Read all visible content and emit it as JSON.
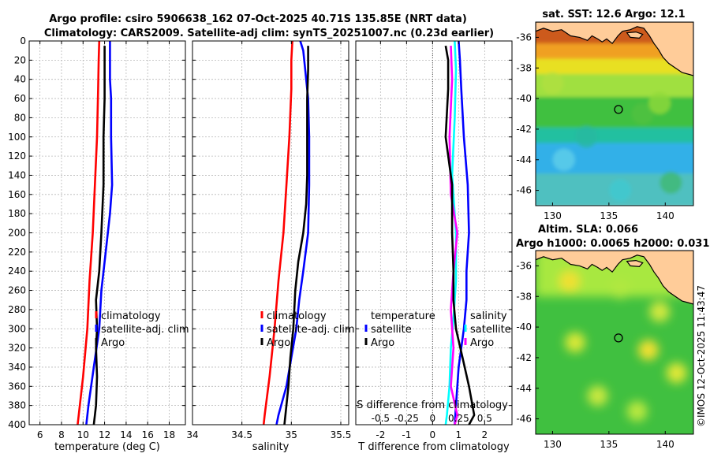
{
  "header": {
    "title_line1": "Argo profile: csiro 5906638_162 07-Oct-2025 40.71S 135.85E (NRT data)",
    "title_line2": "Climatology: CARS2009. Satellite-adj clim: synTS_20251007.nc (0.23d earlier)",
    "sst_title": "sat. SST: 12.6 Argo: 12.1",
    "sla_title1": "Altim. SLA: 0.066",
    "sla_title2": "Argo h1000: 0.0065 h2000: 0.031",
    "credit": "©IMOS 12-Oct-2025 11:43:47"
  },
  "colors": {
    "climatology": "#ff0000",
    "satellite": "#0000ff",
    "argo": "#000000",
    "salinity_diff": "#ff00ff",
    "temperature_diff": "#00ffff",
    "land": "#ffcc99",
    "coast": "#000000"
  },
  "chart_data": [
    {
      "type": "line",
      "id": "temperature",
      "xlabel": "temperature (deg C)",
      "ylabel": "",
      "xlim": [
        5,
        19.5
      ],
      "ylim": [
        400,
        0
      ],
      "xticks": [
        6,
        8,
        10,
        12,
        14,
        16,
        18
      ],
      "yticks": [
        0,
        20,
        40,
        60,
        80,
        100,
        120,
        140,
        160,
        180,
        200,
        220,
        240,
        260,
        280,
        300,
        320,
        340,
        360,
        380,
        400
      ],
      "legend": [
        "climatology",
        "satellite-adj. clim",
        "Argo"
      ],
      "series": [
        {
          "name": "climatology",
          "color": "#ff0000",
          "points": [
            [
              11.5,
              0
            ],
            [
              11.45,
              20
            ],
            [
              11.4,
              50
            ],
            [
              11.3,
              100
            ],
            [
              11.1,
              150
            ],
            [
              10.9,
              200
            ],
            [
              10.6,
              250
            ],
            [
              10.4,
              300
            ],
            [
              10.0,
              350
            ],
            [
              9.6,
              390
            ],
            [
              9.5,
              400
            ]
          ]
        },
        {
          "name": "satellite-adj. clim",
          "color": "#0000ff",
          "points": [
            [
              12.5,
              0
            ],
            [
              12.5,
              20
            ],
            [
              12.5,
              40
            ],
            [
              12.6,
              60
            ],
            [
              12.6,
              100
            ],
            [
              12.7,
              150
            ],
            [
              12.5,
              180
            ],
            [
              12.1,
              220
            ],
            [
              11.7,
              260
            ],
            [
              11.5,
              300
            ],
            [
              11.0,
              340
            ],
            [
              10.5,
              380
            ],
            [
              10.3,
              400
            ]
          ]
        },
        {
          "name": "Argo",
          "color": "#000000",
          "points": [
            [
              12.0,
              5
            ],
            [
              12.0,
              20
            ],
            [
              12.0,
              60
            ],
            [
              11.9,
              100
            ],
            [
              11.9,
              150
            ],
            [
              11.7,
              200
            ],
            [
              11.5,
              240
            ],
            [
              11.2,
              270
            ],
            [
              11.3,
              300
            ],
            [
              11.2,
              320
            ],
            [
              11.3,
              350
            ],
            [
              11.2,
              380
            ],
            [
              11.0,
              400
            ]
          ]
        }
      ]
    },
    {
      "type": "line",
      "id": "salinity",
      "xlabel": "salinity",
      "ylabel": "",
      "xlim": [
        34,
        35.58
      ],
      "ylim": [
        400,
        0
      ],
      "xticks": [
        34,
        34.5,
        35,
        35.5
      ],
      "legend": [
        "climatology",
        "satellite-adj. clim",
        "Argo"
      ],
      "series": [
        {
          "name": "climatology",
          "color": "#ff0000",
          "points": [
            [
              35.01,
              0
            ],
            [
              35.0,
              20
            ],
            [
              35.0,
              50
            ],
            [
              34.98,
              100
            ],
            [
              34.95,
              150
            ],
            [
              34.92,
              200
            ],
            [
              34.87,
              250
            ],
            [
              34.83,
              300
            ],
            [
              34.78,
              350
            ],
            [
              34.73,
              390
            ],
            [
              34.72,
              400
            ]
          ]
        },
        {
          "name": "satellite-adj. clim",
          "color": "#0000ff",
          "points": [
            [
              35.09,
              0
            ],
            [
              35.12,
              10
            ],
            [
              35.14,
              30
            ],
            [
              35.17,
              60
            ],
            [
              35.18,
              100
            ],
            [
              35.18,
              150
            ],
            [
              35.17,
              200
            ],
            [
              35.12,
              240
            ],
            [
              35.08,
              270
            ],
            [
              35.05,
              300
            ],
            [
              35.0,
              330
            ],
            [
              34.95,
              360
            ],
            [
              34.87,
              390
            ],
            [
              34.85,
              400
            ]
          ]
        },
        {
          "name": "Argo",
          "color": "#000000",
          "points": [
            [
              35.17,
              5
            ],
            [
              35.17,
              30
            ],
            [
              35.16,
              60
            ],
            [
              35.16,
              100
            ],
            [
              35.16,
              140
            ],
            [
              35.15,
              170
            ],
            [
              35.12,
              200
            ],
            [
              35.07,
              230
            ],
            [
              35.04,
              260
            ],
            [
              35.02,
              300
            ],
            [
              34.99,
              330
            ],
            [
              34.97,
              360
            ],
            [
              34.94,
              390
            ],
            [
              34.93,
              400
            ]
          ]
        }
      ]
    },
    {
      "type": "line",
      "id": "difference",
      "xlabel": "T difference from climatology",
      "xlabel_top": "S difference from climatology",
      "xlim": [
        -2.95,
        3.05
      ],
      "ylim": [
        400,
        0
      ],
      "xticks": [
        -2,
        -1,
        0,
        1,
        2
      ],
      "xtick_labels": [
        "-2",
        "-1",
        "0",
        "1",
        "2"
      ],
      "xticks_s": [
        -2,
        -1,
        0,
        1,
        2
      ],
      "xtick_labels_s": [
        "-0.5",
        "-0.25",
        "0",
        "0.25",
        "0.5"
      ],
      "legend_left": [
        "temperature",
        "satellite",
        "Argo"
      ],
      "legend_right": [
        "salinity",
        "satellite",
        "Argo"
      ],
      "series": [
        {
          "name": "satellite temperature",
          "color": "#0000ff",
          "points": [
            [
              1.0,
              0
            ],
            [
              1.05,
              20
            ],
            [
              1.1,
              50
            ],
            [
              1.2,
              100
            ],
            [
              1.35,
              150
            ],
            [
              1.4,
              200
            ],
            [
              1.3,
              240
            ],
            [
              1.3,
              270
            ],
            [
              1.2,
              300
            ],
            [
              1.0,
              340
            ],
            [
              0.9,
              380
            ],
            [
              0.85,
              400
            ]
          ]
        },
        {
          "name": "satellite salinity",
          "color": "#00ffff",
          "points": [
            [
              0.85,
              0
            ],
            [
              0.9,
              30
            ],
            [
              0.85,
              80
            ],
            [
              0.75,
              140
            ],
            [
              0.9,
              200
            ],
            [
              0.9,
              250
            ],
            [
              0.8,
              290
            ],
            [
              0.7,
              320
            ],
            [
              0.65,
              360
            ],
            [
              0.55,
              390
            ],
            [
              0.5,
              400
            ]
          ]
        },
        {
          "name": "Argo salinity",
          "color": "#ff00ff",
          "points": [
            [
              0.7,
              5
            ],
            [
              0.75,
              40
            ],
            [
              0.65,
              100
            ],
            [
              0.7,
              160
            ],
            [
              0.95,
              200
            ],
            [
              0.8,
              240
            ],
            [
              0.7,
              280
            ],
            [
              0.8,
              320
            ],
            [
              0.7,
              360
            ],
            [
              0.95,
              390
            ],
            [
              0.85,
              400
            ]
          ]
        },
        {
          "name": "Argo temperature",
          "color": "#000000",
          "points": [
            [
              0.5,
              5
            ],
            [
              0.6,
              20
            ],
            [
              0.6,
              50
            ],
            [
              0.5,
              100
            ],
            [
              0.75,
              150
            ],
            [
              0.75,
              200
            ],
            [
              0.8,
              240
            ],
            [
              0.8,
              270
            ],
            [
              0.9,
              300
            ],
            [
              1.15,
              330
            ],
            [
              1.4,
              360
            ],
            [
              1.6,
              390
            ],
            [
              1.4,
              400
            ]
          ]
        }
      ]
    },
    {
      "type": "heatmap",
      "id": "sst_map",
      "title": "sat. SST: 12.6 Argo: 12.1",
      "xlim": [
        128.5,
        142.5
      ],
      "ylim": [
        -47,
        -35
      ],
      "xticks": [
        130,
        135,
        140
      ],
      "yticks": [
        -36,
        -38,
        -40,
        -42,
        -44,
        -46
      ],
      "argo_position": [
        135.85,
        -40.71
      ],
      "bands": [
        {
          "lat_top": -35,
          "lat_bottom": -36.5,
          "color": "#cc5a1e"
        },
        {
          "lat_top": -36.5,
          "lat_bottom": -37.5,
          "color": "#f0a020"
        },
        {
          "lat_top": -37.5,
          "lat_bottom": -38.5,
          "color": "#e8e020"
        },
        {
          "lat_top": -38.5,
          "lat_bottom": -40.0,
          "color": "#a0e040"
        },
        {
          "lat_top": -40.0,
          "lat_bottom": -42.0,
          "color": "#40c040"
        },
        {
          "lat_top": -42.0,
          "lat_bottom": -43.0,
          "color": "#20c0a0"
        },
        {
          "lat_top": -43.0,
          "lat_bottom": -45.0,
          "color": "#30b0e8"
        },
        {
          "lat_top": -45.0,
          "lat_bottom": -47.0,
          "color": "#50c0c0"
        }
      ]
    },
    {
      "type": "heatmap",
      "id": "sla_map",
      "title": "Altim. SLA: 0.066",
      "xlim": [
        128.5,
        142.5
      ],
      "ylim": [
        -47,
        -35
      ],
      "xticks": [
        130,
        135,
        140
      ],
      "yticks": [
        -36,
        -38,
        -40,
        -42,
        -44,
        -46
      ],
      "argo_position": [
        135.85,
        -40.71
      ],
      "base_color": "#40c040",
      "shelf_color": "#a8e840",
      "eddies": [
        {
          "lon": 131.5,
          "lat": -37.0,
          "color": "#f0e030"
        },
        {
          "lon": 136.0,
          "lat": -37.5,
          "color": "#b0e840"
        },
        {
          "lon": 139.5,
          "lat": -39.0,
          "color": "#d0e840"
        },
        {
          "lon": 132.0,
          "lat": -41.0,
          "color": "#d8e838"
        },
        {
          "lon": 138.5,
          "lat": -41.5,
          "color": "#f0e030"
        },
        {
          "lon": 134.0,
          "lat": -44.5,
          "color": "#c8e840"
        },
        {
          "lon": 141.0,
          "lat": -43.0,
          "color": "#e0e838"
        },
        {
          "lon": 137.5,
          "lat": -45.5,
          "color": "#b8e840"
        }
      ]
    }
  ]
}
